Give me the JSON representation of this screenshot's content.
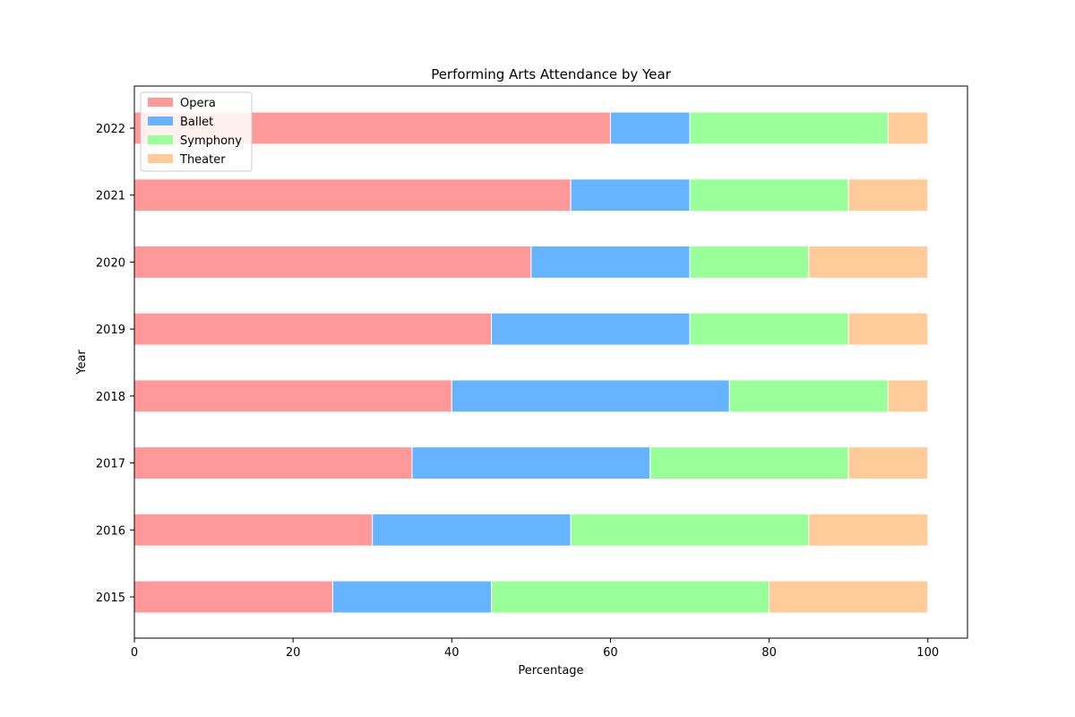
{
  "chart_data": {
    "type": "bar",
    "orientation": "horizontal",
    "stacked": true,
    "title": "Performing Arts Attendance by Year",
    "xlabel": "Percentage",
    "ylabel": "Year",
    "xlim": [
      0,
      105
    ],
    "xticks": [
      0,
      20,
      40,
      60,
      80,
      100
    ],
    "grid": false,
    "legend_position": "top-left",
    "categories": [
      "2015",
      "2016",
      "2017",
      "2018",
      "2019",
      "2020",
      "2021",
      "2022"
    ],
    "series": [
      {
        "name": "Opera",
        "color": "#ff9999",
        "values": [
          25,
          30,
          35,
          40,
          45,
          50,
          55,
          60
        ]
      },
      {
        "name": "Ballet",
        "color": "#66b3ff",
        "values": [
          20,
          25,
          30,
          35,
          25,
          20,
          15,
          10
        ]
      },
      {
        "name": "Symphony",
        "color": "#99ff99",
        "values": [
          35,
          30,
          25,
          20,
          20,
          15,
          20,
          25
        ]
      },
      {
        "name": "Theater",
        "color": "#ffcc99",
        "values": [
          20,
          15,
          10,
          5,
          10,
          15,
          10,
          5
        ]
      }
    ]
  }
}
